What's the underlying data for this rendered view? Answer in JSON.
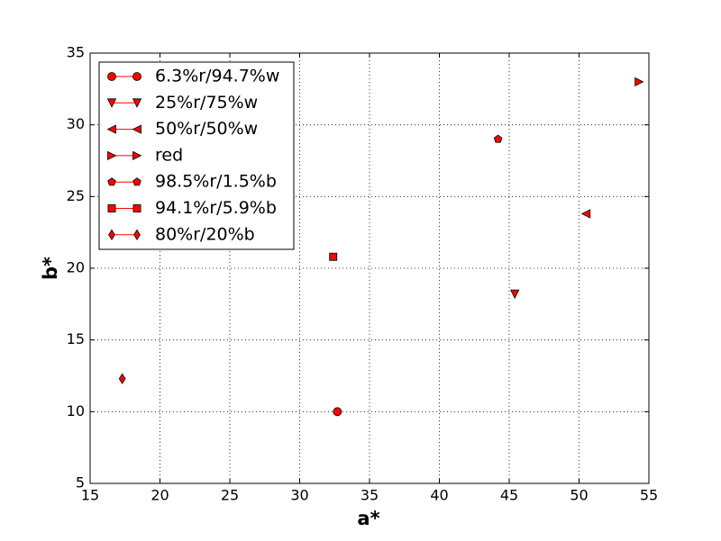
{
  "chart_data": {
    "type": "scatter",
    "x_label": "a*",
    "y_label": "b*",
    "xlim": [
      15,
      55
    ],
    "ylim": [
      5,
      35
    ],
    "xticks": [
      15,
      20,
      25,
      30,
      35,
      40,
      45,
      50,
      55
    ],
    "yticks": [
      5,
      10,
      15,
      20,
      25,
      30,
      35
    ],
    "grid": true,
    "legend": "upper left",
    "series": [
      {
        "name": "6.3%r/94.7%w",
        "color": "#ff0000",
        "marker": "circle",
        "x": [
          32.7
        ],
        "values": [
          10.0
        ]
      },
      {
        "name": "25%r/75%w",
        "color": "#ff0000",
        "marker": "triangle-down",
        "x": [
          45.4
        ],
        "values": [
          18.2
        ]
      },
      {
        "name": "50%r/50%w",
        "color": "#ff0000",
        "marker": "triangle-left",
        "x": [
          50.5
        ],
        "values": [
          23.8
        ]
      },
      {
        "name": "red",
        "color": "#ff0000",
        "marker": "triangle-right",
        "x": [
          54.3
        ],
        "values": [
          33.0
        ]
      },
      {
        "name": "98.5%r/1.5%b",
        "color": "#ff0000",
        "marker": "pentagon",
        "x": [
          44.2
        ],
        "values": [
          29.0
        ]
      },
      {
        "name": "94.1%r/5.9%b",
        "color": "#ff0000",
        "marker": "square",
        "x": [
          32.4
        ],
        "values": [
          20.8
        ]
      },
      {
        "name": "80%r/20%b",
        "color": "#ff0000",
        "marker": "diamond",
        "x": [
          17.3
        ],
        "values": [
          12.3
        ]
      }
    ]
  }
}
